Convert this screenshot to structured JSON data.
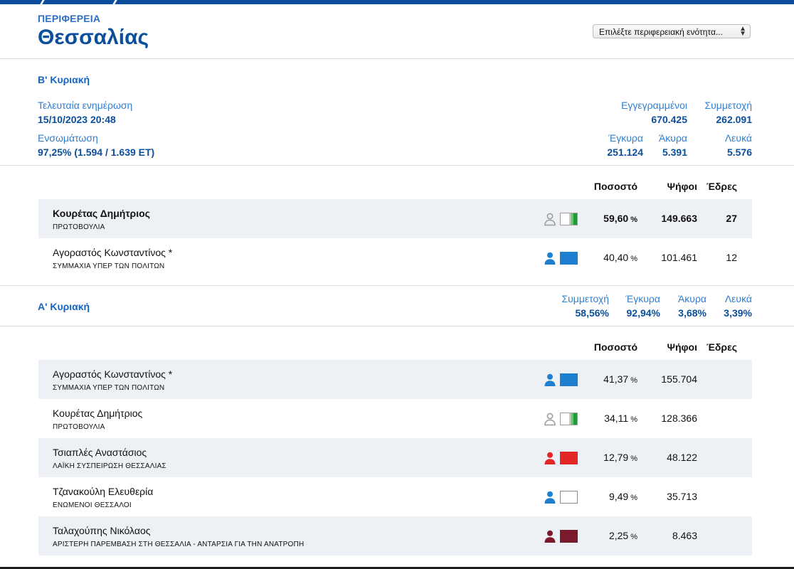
{
  "header": {
    "region_label": "ΠΕΡΙΦΕΡΕΙΑ",
    "region_name": "Θεσσαλίας",
    "unit_select": {
      "value": "Επιλέξτε περιφερειακή ενότητα..."
    }
  },
  "round_b": {
    "title": "Β' Κυριακή",
    "last_update_label": "Τελευταία ενημέρωση",
    "last_update_value": "15/10/2023 20:48",
    "integration_label": "Ενσωμάτωση",
    "integration_value": "97,25% (1.594 / 1.639 ΕΤ)",
    "registered_label": "Εγγεγραμμένοι",
    "registered_value": "670.425",
    "turnout_label": "Συμμετοχή",
    "turnout_value": "262.091",
    "valid_label": "Έγκυρα",
    "valid_value": "251.124",
    "invalid_label": "Άκυρα",
    "invalid_value": "5.391",
    "blank_label": "Λευκά",
    "blank_value": "5.576",
    "columns": {
      "percent": "Ποσοστό",
      "votes": "Ψήφοι",
      "seats": "Έδρες"
    },
    "rows": [
      {
        "name": "Κουρέτας Δημήτριος",
        "party": "ΠΡΩΤΟΒΟΥΛΙΑ",
        "percent": "59,60",
        "unit": "%",
        "votes": "149.663",
        "seats": "27",
        "winner": true,
        "person_color": "#9e9e9e",
        "swatch": "protovoulia"
      },
      {
        "name": "Αγοραστός Κωνσταντίνος *",
        "party": "ΣΥΜΜΑΧΙΑ ΥΠΕΡ ΤΩΝ ΠΟΛΙΤΩΝ",
        "percent": "40,40",
        "unit": "%",
        "votes": "101.461",
        "seats": "12",
        "winner": false,
        "person_color": "#1e7fd0",
        "swatch": "#1e7fd0"
      }
    ]
  },
  "round_a": {
    "title": "Α' Κυριακή",
    "turnout_label": "Συμμετοχή",
    "turnout_value": "58,56%",
    "valid_label": "Έγκυρα",
    "valid_value": "92,94%",
    "invalid_label": "Άκυρα",
    "invalid_value": "3,68%",
    "blank_label": "Λευκά",
    "blank_value": "3,39%",
    "columns": {
      "percent": "Ποσοστό",
      "votes": "Ψήφοι",
      "seats": "Έδρες"
    },
    "rows": [
      {
        "name": "Αγοραστός Κωνσταντίνος *",
        "party": "ΣΥΜΜΑΧΙΑ ΥΠΕΡ ΤΩΝ ΠΟΛΙΤΩΝ",
        "percent": "41,37",
        "unit": "%",
        "votes": "155.704",
        "seats": "",
        "person_color": "#1e7fd0",
        "swatch": "#1e7fd0"
      },
      {
        "name": "Κουρέτας Δημήτριος",
        "party": "ΠΡΩΤΟΒΟΥΛΙΑ",
        "percent": "34,11",
        "unit": "%",
        "votes": "128.366",
        "seats": "",
        "person_color": "#9e9e9e",
        "swatch": "protovoulia"
      },
      {
        "name": "Τσιαπλές Αναστάσιος",
        "party": "ΛΑΪΚΗ ΣΥΣΠΕΙΡΩΣΗ ΘΕΣΣΑΛΙΑΣ",
        "percent": "12,79",
        "unit": "%",
        "votes": "48.122",
        "seats": "",
        "person_color": "#e32626",
        "swatch": "#e32626"
      },
      {
        "name": "Τζανακούλη Ελευθερία",
        "party": "ΕΝΩΜΕΝΟΙ ΘΕΣΣΑΛΟΙ",
        "percent": "9,49",
        "unit": "%",
        "votes": "35.713",
        "seats": "",
        "person_color": "#1e7fd0",
        "swatch": "white"
      },
      {
        "name": "Ταλαχούπης Νικόλαος",
        "party": "ΑΡΙΣΤΕΡΗ ΠΑΡΕΜΒΑΣΗ ΣΤΗ ΘΕΣΣΑΛΙΑ - ΑΝΤΑΡΣΙΑ ΓΙΑ ΤΗΝ ΑΝΑΤΡΟΠΗ",
        "percent": "2,25",
        "unit": "%",
        "votes": "8.463",
        "seats": "",
        "person_color": "#7a1a2a",
        "swatch": "#7a1a2a"
      }
    ]
  },
  "colors": {
    "brand": "#0b4f9c",
    "accent": "#1565c0",
    "row_shade": "#edf0f4"
  }
}
